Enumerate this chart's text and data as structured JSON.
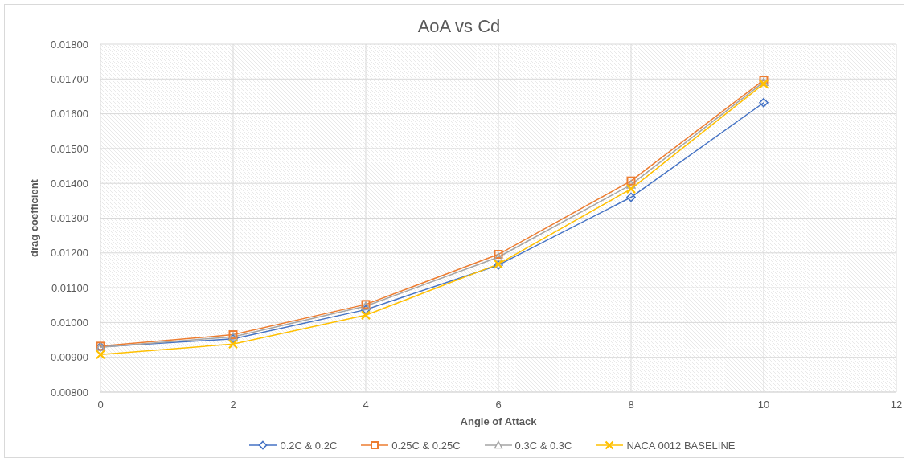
{
  "chart_data": {
    "type": "line",
    "title": "AoA vs Cd",
    "xlabel": "Angle of Attack",
    "ylabel": "drag coefficient",
    "x": [
      0,
      2,
      4,
      6,
      8,
      10
    ],
    "series": [
      {
        "name": "0.2C & 0.2C",
        "color": "#4472c4",
        "marker": "diamond",
        "values": [
          0.0093,
          0.00953,
          0.01037,
          0.01165,
          0.0136,
          0.01632
        ]
      },
      {
        "name": "0.25C & 0.25C",
        "color": "#ed7d31",
        "marker": "square",
        "values": [
          0.00932,
          0.00965,
          0.01052,
          0.01196,
          0.01407,
          0.01697
        ]
      },
      {
        "name": "0.3C & 0.3C",
        "color": "#a5a5a5",
        "marker": "triangle",
        "values": [
          0.00929,
          0.00959,
          0.01047,
          0.01188,
          0.01396,
          0.01691
        ]
      },
      {
        "name": "NACA 0012 BASELINE",
        "color": "#ffc000",
        "marker": "cross",
        "values": [
          0.00908,
          0.00938,
          0.01021,
          0.01168,
          0.01384,
          0.01686
        ]
      }
    ],
    "xlim": [
      0,
      12
    ],
    "xticks": [
      0,
      2,
      4,
      6,
      8,
      10,
      12
    ],
    "ylim": [
      0.008,
      0.018
    ],
    "yticks": [
      {
        "value": 0.008,
        "label": "0.00800"
      },
      {
        "value": 0.009,
        "label": "0.00900"
      },
      {
        "value": 0.01,
        "label": "0.01000"
      },
      {
        "value": 0.011,
        "label": "0.01100"
      },
      {
        "value": 0.012,
        "label": "0.01200"
      },
      {
        "value": 0.013,
        "label": "0.01300"
      },
      {
        "value": 0.014,
        "label": "0.01400"
      },
      {
        "value": 0.015,
        "label": "0.01500"
      },
      {
        "value": 0.016,
        "label": "0.01600"
      },
      {
        "value": 0.017,
        "label": "0.01700"
      },
      {
        "value": 0.018,
        "label": "0.01800"
      }
    ],
    "grid": true,
    "legend": "bottom"
  }
}
